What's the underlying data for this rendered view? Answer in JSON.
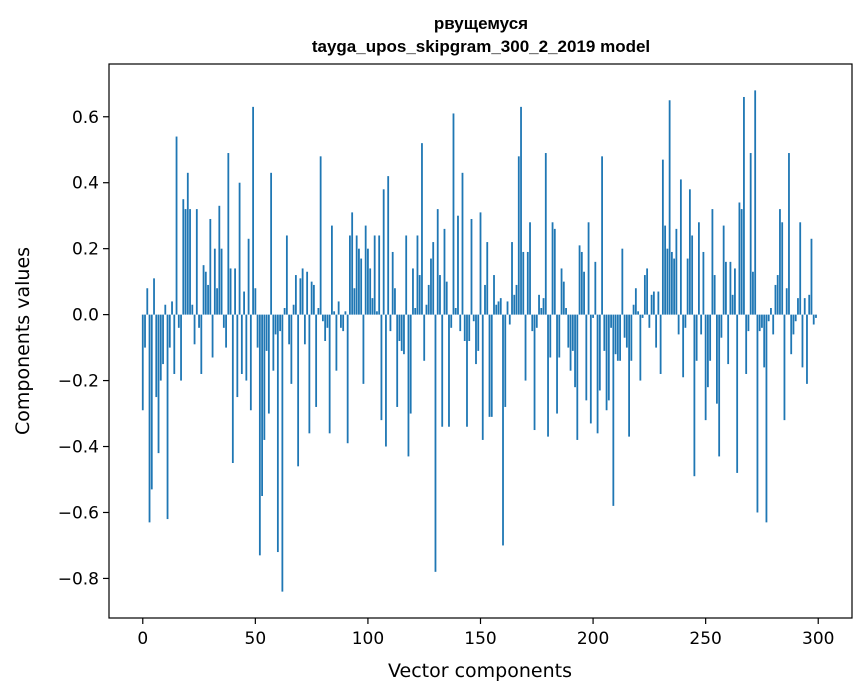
{
  "chart_data": {
    "type": "bar",
    "title": "рвущемуся",
    "subtitle": "tayga_upos_skipgram_300_2_2019 model",
    "xlabel": "Vector components",
    "ylabel": "Components values",
    "xlim": [
      -15,
      315
    ],
    "ylim": [
      -0.92,
      0.76
    ],
    "xticks": [
      0,
      50,
      100,
      150,
      200,
      250,
      300
    ],
    "xtick_labels": [
      "0",
      "50",
      "100",
      "150",
      "200",
      "250",
      "300"
    ],
    "yticks": [
      -0.8,
      -0.6,
      -0.4,
      -0.2,
      0.0,
      0.2,
      0.4,
      0.6
    ],
    "ytick_labels": [
      "−0.8",
      "−0.6",
      "−0.4",
      "−0.2",
      "0.0",
      "0.2",
      "0.4",
      "0.6"
    ],
    "bar_color": "#1f77b4",
    "values": [
      -0.29,
      -0.1,
      0.08,
      -0.63,
      -0.53,
      0.11,
      -0.25,
      -0.42,
      -0.2,
      -0.15,
      0.03,
      -0.62,
      -0.1,
      0.04,
      -0.18,
      0.54,
      -0.04,
      -0.2,
      0.35,
      0.32,
      0.43,
      0.32,
      0.03,
      -0.09,
      0.32,
      -0.04,
      -0.18,
      0.15,
      0.13,
      0.09,
      0.29,
      -0.13,
      0.2,
      0.08,
      0.33,
      0.2,
      -0.04,
      -0.1,
      0.49,
      0.14,
      -0.45,
      0.14,
      -0.25,
      0.4,
      -0.18,
      0.07,
      -0.2,
      0.23,
      -0.29,
      0.63,
      0.08,
      -0.1,
      -0.73,
      -0.55,
      -0.38,
      -0.11,
      -0.3,
      0.43,
      -0.17,
      -0.06,
      -0.72,
      -0.05,
      -0.84,
      0.02,
      0.24,
      -0.09,
      -0.21,
      0.03,
      0.12,
      -0.46,
      0.11,
      0.14,
      -0.09,
      0.13,
      -0.36,
      0.1,
      0.09,
      -0.28,
      0.02,
      0.48,
      -0.02,
      -0.08,
      -0.04,
      -0.36,
      0.27,
      0.01,
      -0.17,
      0.04,
      -0.04,
      -0.05,
      0.01,
      -0.39,
      0.24,
      0.31,
      0.08,
      0.24,
      0.2,
      0.17,
      -0.21,
      0.27,
      0.2,
      0.14,
      0.05,
      0.24,
      0.01,
      0.24,
      -0.32,
      0.38,
      -0.4,
      0.42,
      -0.05,
      0.19,
      0.08,
      -0.28,
      -0.08,
      -0.11,
      -0.12,
      0.24,
      -0.43,
      -0.3,
      0.14,
      0.02,
      0.24,
      0.12,
      0.52,
      -0.14,
      0.03,
      0.09,
      0.17,
      0.22,
      -0.78,
      0.32,
      0.12,
      -0.34,
      0.26,
      0.1,
      -0.34,
      -0.04,
      0.61,
      0.02,
      0.3,
      -0.05,
      0.43,
      -0.08,
      -0.34,
      -0.08,
      0.29,
      -0.02,
      -0.15,
      -0.11,
      0.31,
      -0.38,
      0.09,
      0.22,
      -0.31,
      -0.31,
      0.12,
      0.03,
      0.04,
      0.05,
      -0.7,
      -0.28,
      0.04,
      -0.03,
      0.22,
      0.06,
      0.09,
      0.48,
      0.63,
      0.19,
      -0.2,
      0.19,
      0.28,
      -0.05,
      -0.35,
      -0.04,
      0.06,
      0.02,
      0.05,
      0.49,
      -0.37,
      -0.13,
      0.28,
      0.26,
      -0.3,
      -0.13,
      0.14,
      0.1,
      0.02,
      -0.1,
      -0.17,
      -0.11,
      -0.22,
      -0.38,
      0.21,
      0.19,
      0.13,
      -0.26,
      0.28,
      -0.33,
      -0.01,
      0.16,
      -0.36,
      -0.23,
      0.48,
      -0.11,
      -0.29,
      -0.26,
      -0.04,
      -0.58,
      -0.12,
      -0.14,
      -0.14,
      0.2,
      -0.07,
      -0.1,
      -0.37,
      -0.14,
      0.03,
      0.08,
      0.01,
      -0.2,
      -0.01,
      0.12,
      0.14,
      -0.04,
      0.06,
      0.07,
      -0.1,
      0.07,
      -0.18,
      0.47,
      0.27,
      0.2,
      0.65,
      0.19,
      0.17,
      0.26,
      -0.06,
      0.41,
      -0.19,
      -0.04,
      0.17,
      0.38,
      0.24,
      -0.49,
      -0.14,
      0.28,
      -0.06,
      0.19,
      -0.32,
      -0.22,
      -0.14,
      0.32,
      0.12,
      -0.27,
      -0.43,
      -0.07,
      0.27,
      0.16,
      -0.15,
      0.16,
      0.06,
      0.14,
      -0.48,
      0.34,
      0.32,
      0.66,
      -0.18,
      -0.05,
      0.49,
      0.13,
      0.68,
      -0.6,
      -0.05,
      -0.04,
      -0.16,
      -0.63,
      -0.02,
      0.02,
      -0.06,
      0.09,
      0.12,
      0.32,
      0.28,
      -0.32,
      0.08,
      0.49,
      -0.12,
      -0.06,
      -0.02,
      0.05,
      0.28,
      -0.16,
      0.05,
      -0.21,
      0.06,
      0.23,
      -0.03,
      -0.01
    ]
  }
}
